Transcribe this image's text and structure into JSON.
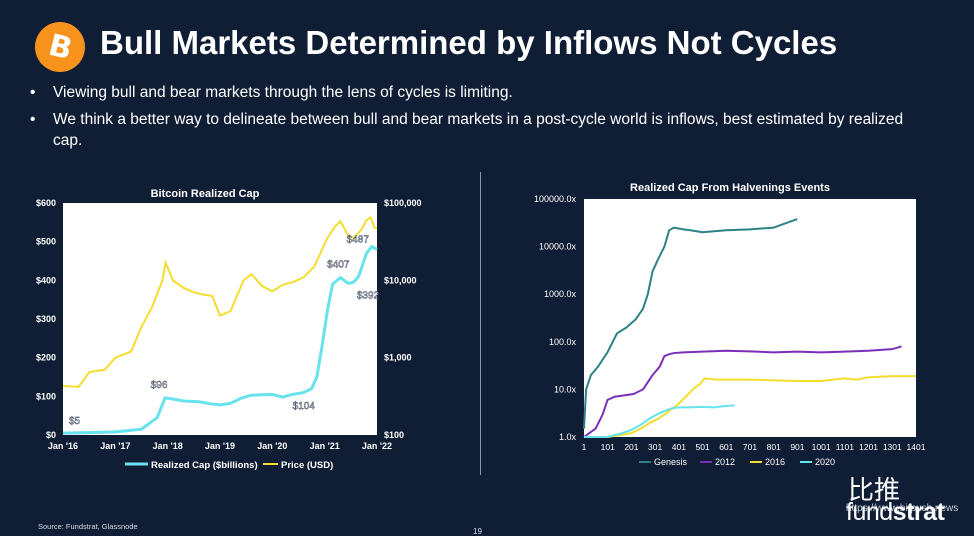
{
  "slide": {
    "title": "Bull Markets Determined by Inflows Not Cycles",
    "logo_symbol": "B",
    "bullets": [
      "Viewing bull and bear markets through the lens of cycles is limiting.",
      "We think a better way to delineate between bull and bear markets in a post-cycle world is inflows, best estimated by realized cap."
    ],
    "source": "Source: Fundstrat, Glassnode",
    "page_number": "19",
    "brand_prefix": "fund",
    "brand_suffix": "strat",
    "watermark_cn": "比推",
    "watermark_url": "https://www.bitpush.news"
  },
  "colors": {
    "background": "#0f1e35",
    "accent": "#f7931a",
    "cyan": "#67e3ee",
    "yellow": "#f5dd2f",
    "teal": "#2c8284",
    "purple": "#7b2fb8"
  },
  "chart_data": [
    {
      "type": "line",
      "title": "Bitcoin Realized Cap",
      "x_ticks": [
        "Jan '16",
        "Jan '17",
        "Jan '18",
        "Jan '19",
        "Jan '20",
        "Jan '21",
        "Jan '22"
      ],
      "xlim": [
        2016,
        2022
      ],
      "left_axis": {
        "label": "Realized Cap ($billions)",
        "ylim": [
          0,
          600
        ],
        "ticks": [
          "$0",
          "$100",
          "$200",
          "$300",
          "$400",
          "$500",
          "$600"
        ]
      },
      "right_axis": {
        "label": "Price (USD)",
        "scale": "log",
        "ylim": [
          100,
          100000
        ],
        "ticks": [
          "$100",
          "$1,000",
          "$10,000",
          "$100,000"
        ]
      },
      "series": [
        {
          "name": "Realized Cap ($billions)",
          "axis": "left",
          "x": [
            2016,
            2016.5,
            2017,
            2017.5,
            2017.8,
            2017.95,
            2018.1,
            2018.3,
            2018.6,
            2018.85,
            2019.0,
            2019.2,
            2019.4,
            2019.6,
            2019.8,
            2020.0,
            2020.2,
            2020.35,
            2020.6,
            2020.75,
            2020.85,
            2020.95,
            2021.05,
            2021.15,
            2021.3,
            2021.45,
            2021.55,
            2021.65,
            2021.8,
            2021.9,
            2022.0
          ],
          "values": [
            5,
            6,
            8,
            15,
            45,
            96,
            93,
            88,
            86,
            80,
            78,
            82,
            95,
            103,
            104,
            105,
            98,
            104,
            110,
            120,
            150,
            230,
            320,
            390,
            407,
            392,
            395,
            410,
            470,
            487,
            480
          ]
        },
        {
          "name": "Price (USD)",
          "axis": "right",
          "x": [
            2016,
            2016.3,
            2016.5,
            2016.8,
            2017,
            2017.3,
            2017.5,
            2017.7,
            2017.9,
            2017.96,
            2018.1,
            2018.3,
            2018.5,
            2018.7,
            2018.85,
            2019.0,
            2019.2,
            2019.45,
            2019.6,
            2019.8,
            2020.0,
            2020.2,
            2020.4,
            2020.6,
            2020.8,
            2020.95,
            2021.05,
            2021.2,
            2021.3,
            2021.45,
            2021.55,
            2021.7,
            2021.8,
            2021.88,
            2021.95,
            2022.0
          ],
          "values": [
            430,
            420,
            650,
            700,
            1000,
            1200,
            2500,
            4500,
            10000,
            17000,
            10000,
            8000,
            7000,
            6500,
            6300,
            3500,
            4000,
            10000,
            12000,
            8500,
            7200,
            8800,
            9500,
            11000,
            15000,
            25000,
            35000,
            50000,
            58000,
            38000,
            35000,
            45000,
            60000,
            65000,
            48000,
            47000
          ]
        }
      ],
      "annotations": [
        "$5",
        "$96",
        "$104",
        "$407",
        "$392",
        "$487"
      ]
    },
    {
      "type": "line",
      "title": "Realized Cap From Halvenings Events",
      "y_scale": "log",
      "ylim": [
        1,
        100000
      ],
      "y_ticks": [
        "1.0x",
        "10.0x",
        "100.0x",
        "1000.0x",
        "10000.0x",
        "100000.0x"
      ],
      "xlim": [
        1,
        1401
      ],
      "x_ticks": [
        "1",
        "101",
        "201",
        "301",
        "401",
        "501",
        "601",
        "701",
        "801",
        "901",
        "1001",
        "1101",
        "1201",
        "1301",
        "1401"
      ],
      "series": [
        {
          "name": "Genesis",
          "x": [
            1,
            10,
            30,
            60,
            100,
            140,
            180,
            220,
            250,
            270,
            290,
            310,
            340,
            360,
            380,
            400,
            420,
            450,
            500,
            550,
            600,
            700,
            800,
            900
          ],
          "values": [
            1.5,
            10,
            20,
            30,
            60,
            150,
            200,
            300,
            500,
            1000,
            3000,
            5000,
            10000,
            22000,
            25000,
            24000,
            23000,
            22000,
            20000,
            21000,
            22000,
            23000,
            25000,
            38000
          ]
        },
        {
          "name": "2012",
          "x": [
            1,
            50,
            80,
            100,
            130,
            170,
            210,
            250,
            290,
            320,
            340,
            360,
            380,
            420,
            500,
            600,
            700,
            800,
            900,
            1000,
            1100,
            1200,
            1300,
            1340
          ],
          "values": [
            1,
            1.5,
            3,
            6,
            7,
            7.5,
            8,
            10,
            20,
            30,
            50,
            55,
            58,
            60,
            62,
            65,
            63,
            60,
            62,
            60,
            62,
            65,
            70,
            80
          ]
        },
        {
          "name": "2016",
          "x": [
            1,
            100,
            200,
            240,
            280,
            320,
            360,
            400,
            430,
            460,
            490,
            510,
            560,
            700,
            900,
            1000,
            1100,
            1150,
            1200,
            1300,
            1401
          ],
          "values": [
            1,
            1,
            1.2,
            1.5,
            2,
            2.5,
            3.5,
            5,
            7,
            10,
            13,
            17,
            16,
            16,
            15,
            15,
            17,
            16,
            18,
            19,
            19
          ]
        },
        {
          "name": "2020",
          "x": [
            1,
            100,
            160,
            200,
            240,
            280,
            310,
            340,
            370,
            400,
            450,
            500,
            550,
            600,
            640
          ],
          "values": [
            1,
            1,
            1.2,
            1.4,
            1.8,
            2.5,
            3,
            3.5,
            4,
            4.2,
            4.2,
            4.3,
            4.2,
            4.5,
            4.6
          ]
        }
      ],
      "annotation": "?"
    }
  ]
}
